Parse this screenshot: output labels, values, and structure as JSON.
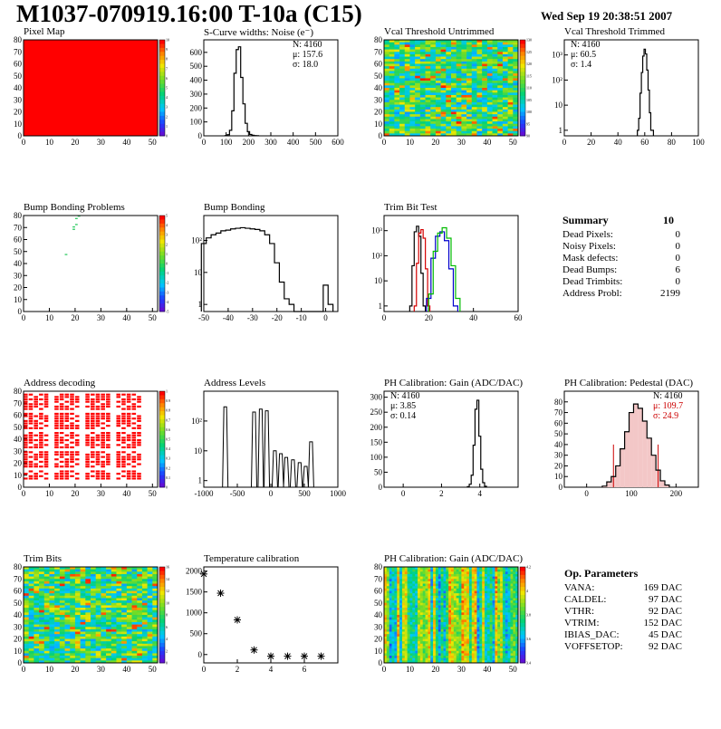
{
  "header": {
    "title": "M1037-070919.16:00 T-10a (C15)",
    "date": "Wed Sep 19 20:38:51 2007"
  },
  "colors": {
    "histogram": "#000000",
    "trim_red": "#d40000",
    "trim_blue": "#0000cc",
    "trim_green": "#00bb00",
    "fit_red": "#cc0000",
    "map_red": "#ff0000",
    "map_green": "#33cc66"
  },
  "chart_data": [
    {
      "id": "pixel-map",
      "type": "heatmap",
      "title": "Pixel Map",
      "xlim": [
        0,
        52
      ],
      "ylim": [
        0,
        80
      ],
      "xticks": [
        0,
        10,
        20,
        30,
        40,
        50
      ],
      "yticks": [
        0,
        10,
        20,
        30,
        40,
        50,
        60,
        70,
        80
      ],
      "zlim": [
        0,
        10
      ],
      "palette_ticks": [
        0,
        1,
        2,
        3,
        4,
        5,
        6,
        7,
        8,
        9,
        10
      ],
      "fill": "uniform-red"
    },
    {
      "id": "scurve",
      "type": "bar",
      "title": "S-Curve widths: Noise (e⁻)",
      "stats": [
        "N: 4160",
        "μ: 157.6",
        "σ: 18.0"
      ],
      "xlim": [
        0,
        600
      ],
      "ylim": [
        0,
        690
      ],
      "xticks": [
        0,
        100,
        200,
        300,
        400,
        500,
        600
      ],
      "yticks": [
        0,
        100,
        200,
        300,
        400,
        500,
        600
      ],
      "x": [
        100,
        110,
        120,
        130,
        140,
        150,
        160,
        170,
        180,
        190,
        200,
        210,
        220,
        230,
        240
      ],
      "values": [
        2,
        8,
        40,
        180,
        450,
        620,
        640,
        420,
        230,
        90,
        30,
        10,
        4,
        2,
        1
      ]
    },
    {
      "id": "vcal-untrimmed",
      "type": "heatmap",
      "title": "Vcal Threshold Untrimmed",
      "xlim": [
        0,
        52
      ],
      "ylim": [
        0,
        80
      ],
      "xticks": [
        0,
        10,
        20,
        30,
        40,
        50
      ],
      "yticks": [
        0,
        10,
        20,
        30,
        40,
        50,
        60,
        70,
        80
      ],
      "zlim": [
        90,
        130
      ],
      "palette_ticks": [
        90,
        95,
        100,
        105,
        110,
        115,
        120,
        125,
        130
      ],
      "fill": "noise-green"
    },
    {
      "id": "vcal-trimmed",
      "type": "bar",
      "title": "Vcal Threshold Trimmed",
      "log": true,
      "stats": [
        "N: 4160",
        "μ: 60.5",
        "σ:  1.4"
      ],
      "xlim": [
        0,
        100
      ],
      "ylim": [
        0.6,
        4000
      ],
      "xticks": [
        0,
        20,
        40,
        60,
        80,
        100
      ],
      "yticks_labels": [
        "1",
        "10",
        "10²",
        "10³"
      ],
      "yticks": [
        1,
        10,
        100,
        1000
      ],
      "x": [
        55,
        56,
        57,
        58,
        59,
        60,
        61,
        62,
        63,
        64,
        65,
        66
      ],
      "values": [
        1,
        3,
        30,
        200,
        900,
        1700,
        1100,
        250,
        40,
        5,
        1,
        1
      ]
    },
    {
      "id": "bump-problems",
      "type": "heatmap",
      "title": "Bump Bonding Problems",
      "xlim": [
        0,
        52
      ],
      "ylim": [
        0,
        80
      ],
      "xticks": [
        0,
        10,
        20,
        30,
        40,
        50
      ],
      "yticks": [
        0,
        10,
        20,
        30,
        40,
        50,
        60,
        70,
        80
      ],
      "zlim": [
        -5,
        5
      ],
      "palette_ticks": [
        -5,
        -4,
        -3,
        -2,
        -1,
        0,
        1,
        2,
        3,
        4,
        5
      ],
      "fill": "sparse",
      "points": [
        [
          16,
          47
        ],
        [
          19,
          68
        ],
        [
          19,
          70
        ],
        [
          20,
          72
        ],
        [
          20,
          77
        ],
        [
          21,
          79
        ]
      ]
    },
    {
      "id": "bump-bonding",
      "type": "bar",
      "title": "Bump Bonding",
      "log": true,
      "xlim": [
        -50,
        5
      ],
      "ylim": [
        0.6,
        600
      ],
      "xticks": [
        -50,
        -40,
        -30,
        -20,
        -10,
        0
      ],
      "yticks_labels": [
        "1",
        "10",
        "10²"
      ],
      "yticks": [
        1,
        10,
        100
      ],
      "x": [
        -50,
        -48,
        -46,
        -44,
        -42,
        -40,
        -38,
        -36,
        -34,
        -32,
        -30,
        -28,
        -26,
        -24,
        -22,
        -20,
        -18,
        -16,
        -14,
        -12,
        -10,
        -8,
        -6,
        -4,
        -2,
        0,
        2
      ],
      "values": [
        80,
        120,
        150,
        170,
        200,
        210,
        230,
        240,
        250,
        240,
        230,
        220,
        200,
        150,
        80,
        20,
        5,
        1.5,
        1,
        0,
        0,
        0,
        0,
        0,
        0,
        4,
        1
      ]
    },
    {
      "id": "trim-bit-test",
      "type": "line",
      "title": "Trim Bit Test",
      "log": true,
      "xlim": [
        0,
        60
      ],
      "ylim": [
        0.6,
        4000
      ],
      "xticks": [
        0,
        20,
        40,
        60
      ],
      "yticks_labels": [
        "1",
        "10",
        "10²",
        "10³"
      ],
      "yticks": [
        1,
        10,
        100,
        1000
      ],
      "series": [
        {
          "color": "#000000",
          "x": [
            12,
            13,
            14,
            15,
            16,
            17,
            18
          ],
          "values": [
            1,
            40,
            900,
            1500,
            600,
            20,
            1
          ]
        },
        {
          "color": "#d40000",
          "x": [
            14,
            15,
            16,
            17,
            18,
            19,
            20
          ],
          "values": [
            1,
            50,
            800,
            1100,
            500,
            30,
            1
          ]
        },
        {
          "color": "#0000cc",
          "x": [
            20,
            22,
            24,
            26,
            28,
            30,
            32
          ],
          "values": [
            2,
            80,
            600,
            900,
            400,
            30,
            1
          ]
        },
        {
          "color": "#00bb00",
          "x": [
            21,
            23,
            25,
            27,
            29,
            31,
            33
          ],
          "values": [
            3,
            150,
            800,
            1300,
            500,
            40,
            2
          ]
        }
      ]
    },
    {
      "id": "summary",
      "type": "table",
      "title": "Summary",
      "total": "10",
      "rows": [
        {
          "label": "Dead Pixels:",
          "value": "0"
        },
        {
          "label": "Noisy Pixels:",
          "value": "0"
        },
        {
          "label": "Mask defects:",
          "value": "0"
        },
        {
          "label": "Dead Bumps:",
          "value": "6"
        },
        {
          "label": "Dead Trimbits:",
          "value": "0"
        },
        {
          "label": "Address Probl:",
          "value": "2199"
        }
      ]
    },
    {
      "id": "address-decoding",
      "type": "heatmap",
      "title": "Address decoding",
      "xlim": [
        0,
        52
      ],
      "ylim": [
        0,
        80
      ],
      "xticks": [
        0,
        10,
        20,
        30,
        40,
        50
      ],
      "yticks": [
        0,
        10,
        20,
        30,
        40,
        50,
        60,
        70,
        80
      ],
      "zlim": [
        0,
        1
      ],
      "palette_ticks": [
        0,
        0.1,
        0.2,
        0.3,
        0.4,
        0.5,
        0.6,
        0.7,
        0.8,
        0.9,
        1
      ],
      "fill": "address-blocks"
    },
    {
      "id": "address-levels",
      "type": "line",
      "title": "Address Levels",
      "log": true,
      "xlim": [
        -1000,
        1000
      ],
      "ylim": [
        0.6,
        1000
      ],
      "xticks": [
        -1000,
        -500,
        0,
        500,
        1000
      ],
      "yticks_labels": [
        "1",
        "10",
        "10²"
      ],
      "yticks": [
        1,
        10,
        100
      ],
      "peaks": [
        -680,
        -250,
        -150,
        -60,
        60,
        150,
        230,
        330,
        430,
        520,
        600
      ],
      "peak_values": [
        300,
        200,
        250,
        220,
        10,
        8,
        6,
        5,
        4,
        3,
        20
      ]
    },
    {
      "id": "ph-gain-hist",
      "type": "bar",
      "title": "PH Calibration: Gain (ADC/DAC)",
      "stats": [
        "N: 4160",
        "μ: 3.85",
        "σ: 0.14"
      ],
      "xlim": [
        -1,
        6
      ],
      "ylim": [
        0,
        320
      ],
      "xticks": [
        0,
        2,
        4
      ],
      "yticks": [
        0,
        50,
        100,
        150,
        200,
        250,
        300
      ],
      "x": [
        3.4,
        3.5,
        3.6,
        3.7,
        3.8,
        3.9,
        4.0,
        4.1,
        4.2,
        4.3
      ],
      "values": [
        2,
        10,
        40,
        140,
        260,
        290,
        170,
        60,
        15,
        3
      ]
    },
    {
      "id": "ph-pedestal",
      "type": "bar",
      "title": "PH Calibration: Pedestal (DAC)",
      "stats": [
        "N: 4160",
        "μ: 109.7",
        "σ: 24.9"
      ],
      "xlim": [
        -50,
        250
      ],
      "ylim": [
        0,
        90
      ],
      "xticks": [
        0,
        100,
        200
      ],
      "yticks": [
        0,
        10,
        20,
        30,
        40,
        50,
        60,
        70,
        80
      ],
      "x": [
        40,
        50,
        60,
        70,
        80,
        90,
        100,
        110,
        120,
        130,
        140,
        150,
        160,
        170,
        180
      ],
      "values": [
        1,
        5,
        10,
        20,
        36,
        52,
        70,
        78,
        74,
        62,
        46,
        30,
        16,
        6,
        2
      ]
    },
    {
      "id": "trim-bits",
      "type": "heatmap",
      "title": "Trim Bits",
      "xlim": [
        0,
        52
      ],
      "ylim": [
        0,
        80
      ],
      "xticks": [
        0,
        10,
        20,
        30,
        40,
        50
      ],
      "yticks": [
        0,
        10,
        20,
        30,
        40,
        50,
        60,
        70,
        80
      ],
      "zlim": [
        0,
        16
      ],
      "palette_ticks": [
        0,
        2,
        4,
        6,
        8,
        10,
        12,
        14,
        16
      ],
      "fill": "noise-green"
    },
    {
      "id": "temperature-calibration",
      "type": "scatter",
      "title": "Temperature calibration",
      "xlim": [
        0,
        8
      ],
      "ylim": [
        -200,
        2100
      ],
      "xticks": [
        0,
        2,
        4,
        6
      ],
      "yticks": [
        0,
        500,
        1000,
        1500,
        2000
      ],
      "x": [
        0,
        1,
        2,
        3,
        4,
        5,
        6,
        7
      ],
      "values": [
        1930,
        1470,
        830,
        110,
        -40,
        -40,
        -40,
        -40
      ]
    },
    {
      "id": "ph-gain-map",
      "type": "heatmap",
      "title": "PH Calibration: Gain (ADC/DAC)",
      "xlim": [
        0,
        52
      ],
      "ylim": [
        0,
        80
      ],
      "xticks": [
        0,
        10,
        20,
        30,
        40,
        50
      ],
      "yticks": [
        0,
        10,
        20,
        30,
        40,
        50,
        60,
        70,
        80
      ],
      "zlim": [
        3.4,
        4.2
      ],
      "palette_ticks": [
        "3.4",
        "3.6",
        "3.8",
        "4",
        "4.2"
      ],
      "fill": "column-stripes"
    },
    {
      "id": "op-parameters",
      "type": "table",
      "title": "Op. Parameters",
      "rows": [
        {
          "label": "VANA:",
          "value": "169 DAC"
        },
        {
          "label": "CALDEL:",
          "value": "97 DAC"
        },
        {
          "label": "VTHR:",
          "value": "92 DAC"
        },
        {
          "label": "VTRIM:",
          "value": "152 DAC"
        },
        {
          "label": "IBIAS_DAC:",
          "value": "45 DAC"
        },
        {
          "label": "VOFFSETOP:",
          "value": "92 DAC"
        }
      ]
    }
  ]
}
